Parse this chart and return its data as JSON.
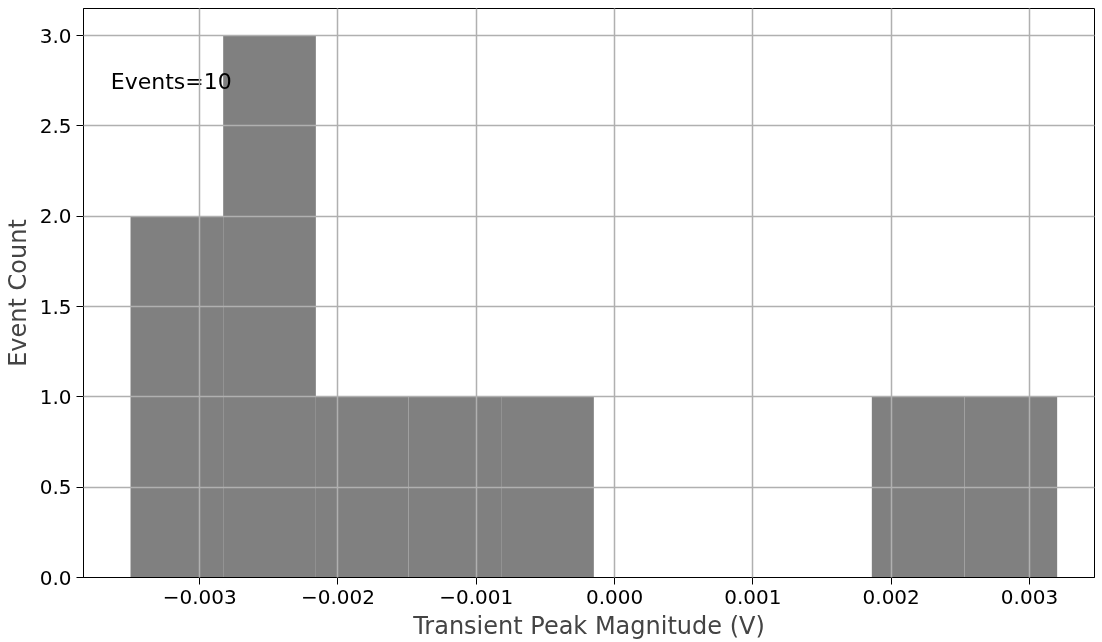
{
  "chart_data": {
    "type": "histogram",
    "xlabel": "Transient Peak Magnitude (V)",
    "ylabel": "Event Count",
    "bins": [
      -0.0035,
      -0.00283,
      -0.00216,
      -0.00149,
      -0.00082,
      -0.00015,
      0.00052,
      0.00119,
      0.00186,
      0.00253,
      0.0032
    ],
    "values": [
      2,
      3,
      1,
      1,
      1,
      0,
      0,
      0,
      1,
      1
    ],
    "color": "#808080",
    "xlim": [
      -0.00384,
      0.00347
    ],
    "ylim": [
      0,
      3.15
    ],
    "xticks": [
      {
        "value": -0.003,
        "label": "−0.003"
      },
      {
        "value": -0.002,
        "label": "−0.002"
      },
      {
        "value": -0.001,
        "label": "−0.001"
      },
      {
        "value": 0,
        "label": "0.000"
      },
      {
        "value": 0.001,
        "label": "0.001"
      },
      {
        "value": 0.002,
        "label": "0.002"
      },
      {
        "value": 0.003,
        "label": "0.003"
      }
    ],
    "yticks": [
      {
        "value": 0,
        "label": "0.0"
      },
      {
        "value": 0.5,
        "label": "0.5"
      },
      {
        "value": 1,
        "label": "1.0"
      },
      {
        "value": 1.5,
        "label": "1.5"
      },
      {
        "value": 2,
        "label": "2.0"
      },
      {
        "value": 2.5,
        "label": "2.5"
      },
      {
        "value": 3,
        "label": "3.0"
      }
    ],
    "grid": true,
    "annotations": [
      "Events=10"
    ]
  }
}
